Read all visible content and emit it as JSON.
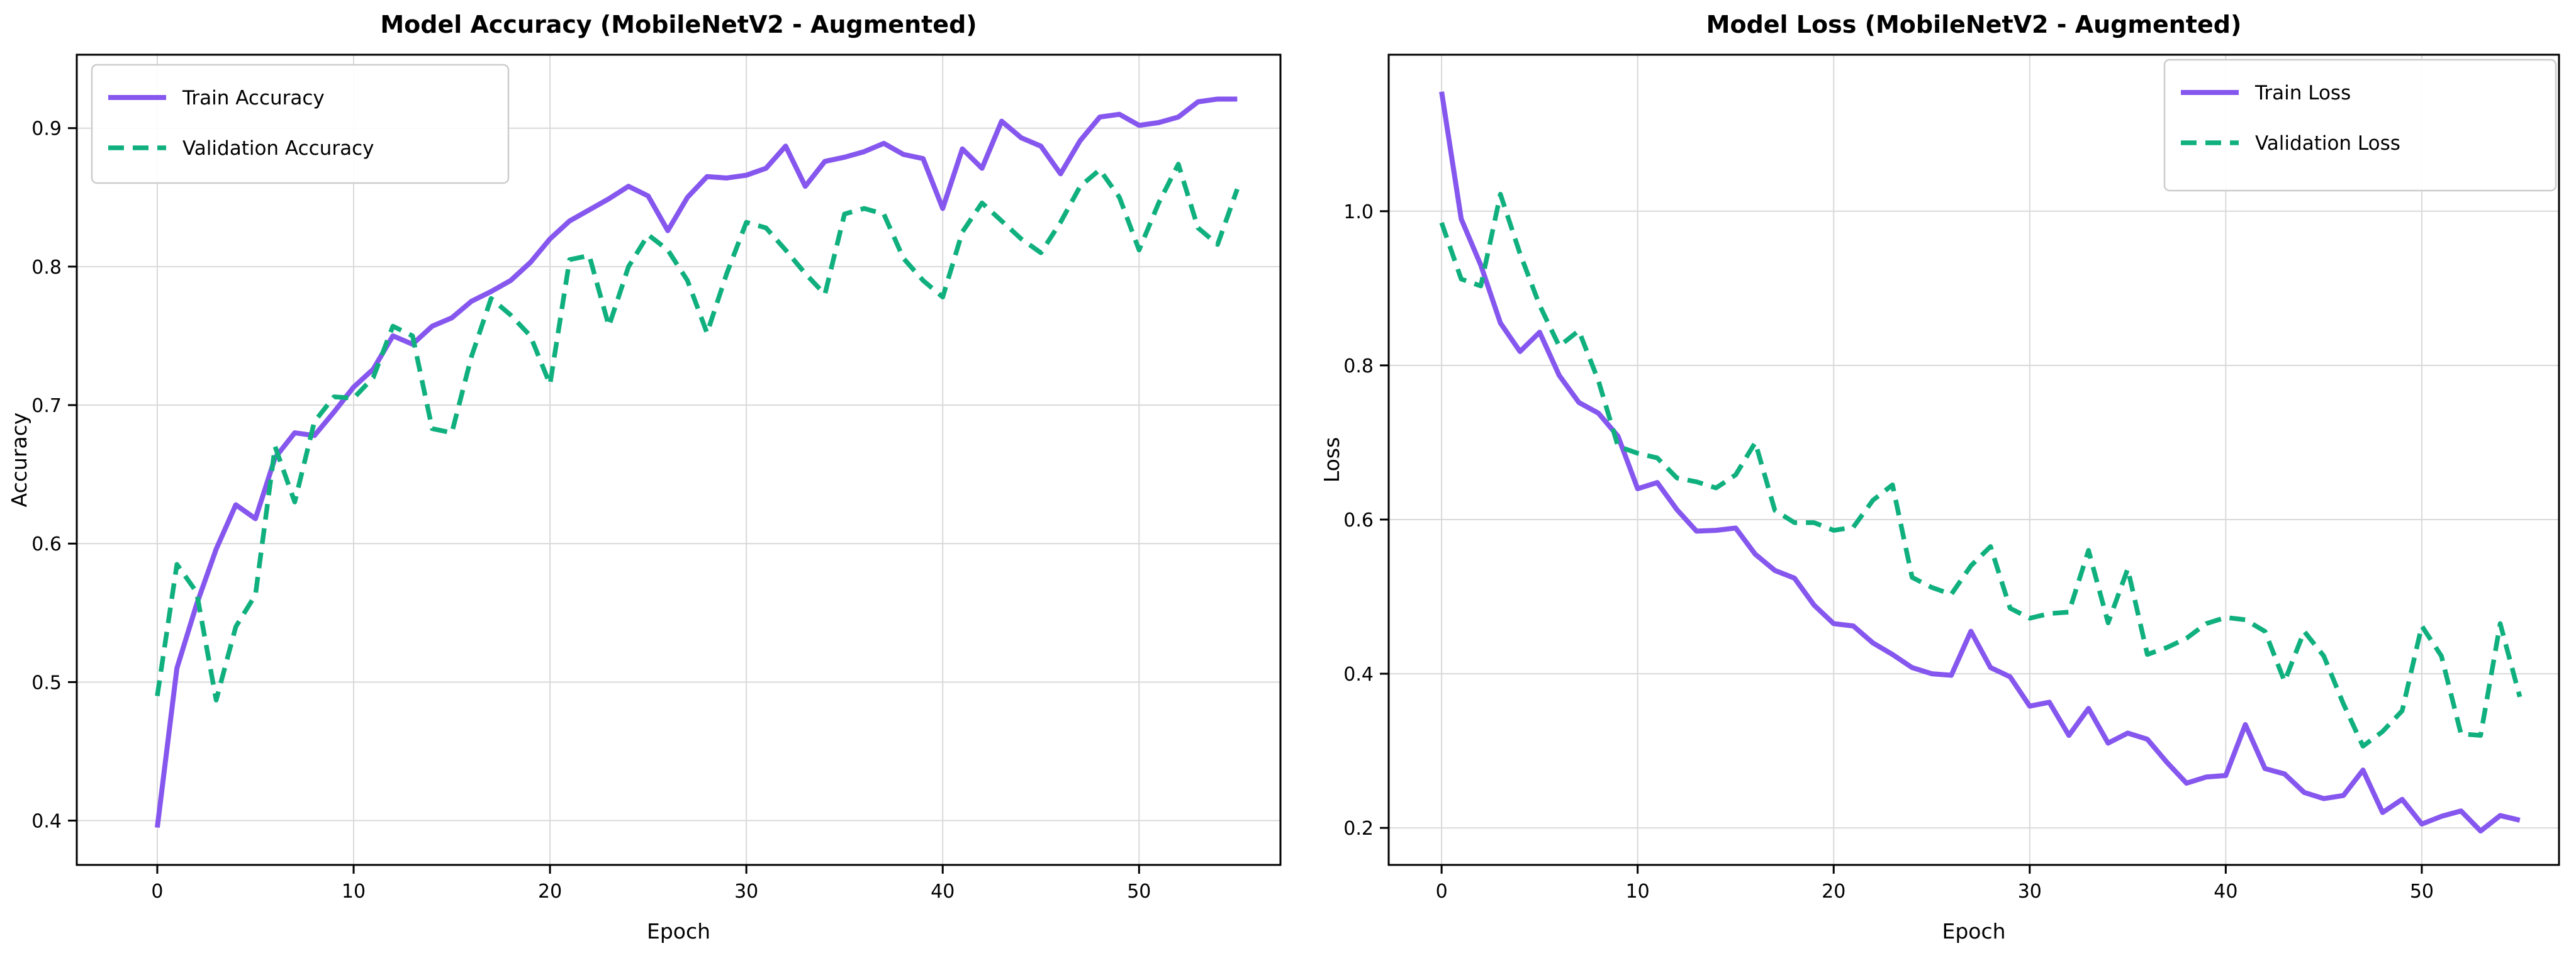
{
  "figure": {
    "background": "#ffffff",
    "grid_color": "#d9d9d9",
    "spine_color": "#000000",
    "legend_border_color": "#cccccc",
    "legend_background": "#ffffff"
  },
  "chart_data": [
    {
      "type": "line",
      "title": "Model Accuracy (MobileNetV2 - Augmented)",
      "xlabel": "Epoch",
      "ylabel": "Accuracy",
      "grid": true,
      "legend_position": "upper left",
      "xlim": [
        -4.1,
        57.2
      ],
      "ylim": [
        0.368,
        0.953
      ],
      "xticks": [
        0,
        10,
        20,
        30,
        40,
        50
      ],
      "xtick_labels": [
        "0",
        "10",
        "20",
        "30",
        "40",
        "50"
      ],
      "yticks": [
        0.4,
        0.5,
        0.6,
        0.7,
        0.8,
        0.9
      ],
      "ytick_labels": [
        "0.4",
        "0.5",
        "0.6",
        "0.7",
        "0.8",
        "0.9"
      ],
      "epochs": 56,
      "series": [
        {
          "name": "Train Accuracy",
          "color": "#8657ee",
          "style": "solid",
          "values": [
            0.395,
            0.51,
            0.556,
            0.596,
            0.628,
            0.618,
            0.662,
            0.68,
            0.678,
            0.695,
            0.713,
            0.726,
            0.75,
            0.744,
            0.757,
            0.763,
            0.775,
            0.782,
            0.79,
            0.803,
            0.82,
            0.833,
            0.841,
            0.849,
            0.858,
            0.851,
            0.826,
            0.85,
            0.865,
            0.864,
            0.866,
            0.871,
            0.887,
            0.858,
            0.876,
            0.879,
            0.883,
            0.889,
            0.881,
            0.878,
            0.842,
            0.885,
            0.871,
            0.905,
            0.893,
            0.887,
            0.867,
            0.891,
            0.908,
            0.91,
            0.902,
            0.904,
            0.908,
            0.919,
            0.921,
            0.921
          ]
        },
        {
          "name": "Validation Accuracy",
          "color": "#10b07e",
          "style": "dashed",
          "values": [
            0.49,
            0.585,
            0.565,
            0.487,
            0.54,
            0.563,
            0.67,
            0.63,
            0.688,
            0.706,
            0.705,
            0.72,
            0.757,
            0.75,
            0.683,
            0.68,
            0.735,
            0.777,
            0.765,
            0.75,
            0.715,
            0.805,
            0.808,
            0.757,
            0.8,
            0.823,
            0.812,
            0.79,
            0.752,
            0.795,
            0.832,
            0.828,
            0.812,
            0.795,
            0.78,
            0.838,
            0.842,
            0.838,
            0.806,
            0.79,
            0.778,
            0.825,
            0.846,
            0.833,
            0.82,
            0.81,
            0.832,
            0.858,
            0.87,
            0.85,
            0.812,
            0.846,
            0.874,
            0.828,
            0.816,
            0.856
          ]
        }
      ]
    },
    {
      "type": "line",
      "title": "Model Loss (MobileNetV2 - Augmented)",
      "xlabel": "Epoch",
      "ylabel": "Loss",
      "grid": true,
      "legend_position": "upper right",
      "xlim": [
        -2.7,
        57.0
      ],
      "ylim": [
        0.152,
        1.203
      ],
      "xticks": [
        0,
        10,
        20,
        30,
        40,
        50
      ],
      "xtick_labels": [
        "0",
        "10",
        "20",
        "30",
        "40",
        "50"
      ],
      "yticks": [
        0.2,
        0.4,
        0.6,
        0.8,
        1.0
      ],
      "ytick_labels": [
        "0.2",
        "0.4",
        "0.6",
        "0.8",
        "1.0"
      ],
      "epochs": 56,
      "series": [
        {
          "name": "Train Loss",
          "color": "#8657ee",
          "style": "solid",
          "values": [
            1.155,
            0.99,
            0.93,
            0.855,
            0.818,
            0.843,
            0.787,
            0.752,
            0.738,
            0.708,
            0.64,
            0.648,
            0.613,
            0.585,
            0.586,
            0.589,
            0.555,
            0.534,
            0.524,
            0.489,
            0.465,
            0.462,
            0.44,
            0.425,
            0.408,
            0.4,
            0.398,
            0.455,
            0.408,
            0.396,
            0.358,
            0.363,
            0.32,
            0.355,
            0.31,
            0.323,
            0.315,
            0.285,
            0.258,
            0.266,
            0.268,
            0.334,
            0.277,
            0.27,
            0.246,
            0.238,
            0.242,
            0.275,
            0.22,
            0.237,
            0.205,
            0.215,
            0.222,
            0.196,
            0.216,
            0.21
          ]
        },
        {
          "name": "Validation Loss",
          "color": "#10b07e",
          "style": "dashed",
          "values": [
            0.985,
            0.912,
            0.903,
            1.022,
            0.945,
            0.878,
            0.825,
            0.845,
            0.78,
            0.695,
            0.686,
            0.68,
            0.654,
            0.649,
            0.641,
            0.658,
            0.7,
            0.612,
            0.596,
            0.596,
            0.586,
            0.59,
            0.625,
            0.645,
            0.525,
            0.512,
            0.503,
            0.54,
            0.565,
            0.485,
            0.472,
            0.478,
            0.48,
            0.56,
            0.466,
            0.536,
            0.425,
            0.434,
            0.446,
            0.465,
            0.473,
            0.47,
            0.455,
            0.39,
            0.455,
            0.423,
            0.361,
            0.306,
            0.325,
            0.352,
            0.462,
            0.423,
            0.322,
            0.32,
            0.465,
            0.37
          ]
        }
      ]
    }
  ]
}
